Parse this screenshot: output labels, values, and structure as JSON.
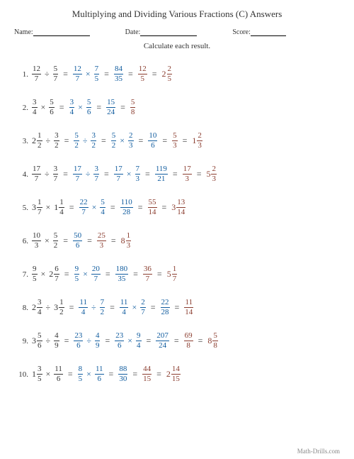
{
  "title": "Multiplying and Dividing Various Fractions (C) Answers",
  "meta": {
    "name_label": "Name:",
    "date_label": "Date:",
    "score_label": "Score:"
  },
  "instruction": "Calculate each result.",
  "footer": "Math-Drills.com",
  "colors": {
    "black": "#343434",
    "blue": "#0f5b9e",
    "brown": "#8a3c2e"
  },
  "problems": [
    {
      "n": "1.",
      "stages": [
        {
          "color": "black",
          "parts": [
            {
              "t": "f",
              "n": "12",
              "d": "7"
            },
            {
              "t": "op",
              "v": "÷"
            },
            {
              "t": "f",
              "n": "5",
              "d": "7"
            }
          ]
        },
        {
          "color": "blue",
          "parts": [
            {
              "t": "f",
              "n": "12",
              "d": "7"
            },
            {
              "t": "op",
              "v": "×"
            },
            {
              "t": "f",
              "n": "7",
              "d": "5"
            }
          ]
        },
        {
          "color": "blue",
          "parts": [
            {
              "t": "f",
              "n": "84",
              "d": "35"
            }
          ]
        },
        {
          "color": "brown",
          "parts": [
            {
              "t": "f",
              "n": "12",
              "d": "5"
            }
          ]
        },
        {
          "color": "brown",
          "parts": [
            {
              "t": "m",
              "w": "2",
              "n": "2",
              "d": "5"
            }
          ]
        }
      ]
    },
    {
      "n": "2.",
      "stages": [
        {
          "color": "black",
          "parts": [
            {
              "t": "f",
              "n": "3",
              "d": "4"
            },
            {
              "t": "op",
              "v": "×"
            },
            {
              "t": "f",
              "n": "5",
              "d": "6"
            }
          ]
        },
        {
          "color": "blue",
          "parts": [
            {
              "t": "f",
              "n": "3",
              "d": "4"
            },
            {
              "t": "op",
              "v": "×"
            },
            {
              "t": "f",
              "n": "5",
              "d": "6"
            }
          ]
        },
        {
          "color": "blue",
          "parts": [
            {
              "t": "f",
              "n": "15",
              "d": "24"
            }
          ]
        },
        {
          "color": "brown",
          "parts": [
            {
              "t": "f",
              "n": "5",
              "d": "8"
            }
          ]
        }
      ]
    },
    {
      "n": "3.",
      "stages": [
        {
          "color": "black",
          "parts": [
            {
              "t": "m",
              "w": "2",
              "n": "1",
              "d": "2"
            },
            {
              "t": "op",
              "v": "÷"
            },
            {
              "t": "f",
              "n": "3",
              "d": "2"
            }
          ]
        },
        {
          "color": "blue",
          "parts": [
            {
              "t": "f",
              "n": "5",
              "d": "2"
            },
            {
              "t": "op",
              "v": "÷"
            },
            {
              "t": "f",
              "n": "3",
              "d": "2"
            }
          ]
        },
        {
          "color": "blue",
          "parts": [
            {
              "t": "f",
              "n": "5",
              "d": "2"
            },
            {
              "t": "op",
              "v": "×"
            },
            {
              "t": "f",
              "n": "2",
              "d": "3"
            }
          ]
        },
        {
          "color": "blue",
          "parts": [
            {
              "t": "f",
              "n": "10",
              "d": "6"
            }
          ]
        },
        {
          "color": "brown",
          "parts": [
            {
              "t": "f",
              "n": "5",
              "d": "3"
            }
          ]
        },
        {
          "color": "brown",
          "parts": [
            {
              "t": "m",
              "w": "1",
              "n": "2",
              "d": "3"
            }
          ]
        }
      ]
    },
    {
      "n": "4.",
      "stages": [
        {
          "color": "black",
          "parts": [
            {
              "t": "f",
              "n": "17",
              "d": "7"
            },
            {
              "t": "op",
              "v": "÷"
            },
            {
              "t": "f",
              "n": "3",
              "d": "7"
            }
          ]
        },
        {
          "color": "blue",
          "parts": [
            {
              "t": "f",
              "n": "17",
              "d": "7"
            },
            {
              "t": "op",
              "v": "÷"
            },
            {
              "t": "f",
              "n": "3",
              "d": "7"
            }
          ]
        },
        {
          "color": "blue",
          "parts": [
            {
              "t": "f",
              "n": "17",
              "d": "7"
            },
            {
              "t": "op",
              "v": "×"
            },
            {
              "t": "f",
              "n": "7",
              "d": "3"
            }
          ]
        },
        {
          "color": "blue",
          "parts": [
            {
              "t": "f",
              "n": "119",
              "d": "21"
            }
          ]
        },
        {
          "color": "brown",
          "parts": [
            {
              "t": "f",
              "n": "17",
              "d": "3"
            }
          ]
        },
        {
          "color": "brown",
          "parts": [
            {
              "t": "m",
              "w": "5",
              "n": "2",
              "d": "3"
            }
          ]
        }
      ]
    },
    {
      "n": "5.",
      "stages": [
        {
          "color": "black",
          "parts": [
            {
              "t": "m",
              "w": "3",
              "n": "1",
              "d": "7"
            },
            {
              "t": "op",
              "v": "×"
            },
            {
              "t": "m",
              "w": "1",
              "n": "1",
              "d": "4"
            }
          ]
        },
        {
          "color": "blue",
          "parts": [
            {
              "t": "f",
              "n": "22",
              "d": "7"
            },
            {
              "t": "op",
              "v": "×"
            },
            {
              "t": "f",
              "n": "5",
              "d": "4"
            }
          ]
        },
        {
          "color": "blue",
          "parts": [
            {
              "t": "f",
              "n": "110",
              "d": "28"
            }
          ]
        },
        {
          "color": "brown",
          "parts": [
            {
              "t": "f",
              "n": "55",
              "d": "14"
            }
          ]
        },
        {
          "color": "brown",
          "parts": [
            {
              "t": "m",
              "w": "3",
              "n": "13",
              "d": "14"
            }
          ]
        }
      ]
    },
    {
      "n": "6.",
      "stages": [
        {
          "color": "black",
          "parts": [
            {
              "t": "f",
              "n": "10",
              "d": "3"
            },
            {
              "t": "op",
              "v": "×"
            },
            {
              "t": "f",
              "n": "5",
              "d": "2"
            }
          ]
        },
        {
          "color": "blue",
          "parts": [
            {
              "t": "f",
              "n": "50",
              "d": "6"
            }
          ]
        },
        {
          "color": "brown",
          "parts": [
            {
              "t": "f",
              "n": "25",
              "d": "3"
            }
          ]
        },
        {
          "color": "brown",
          "parts": [
            {
              "t": "m",
              "w": "8",
              "n": "1",
              "d": "3"
            }
          ]
        }
      ]
    },
    {
      "n": "7.",
      "stages": [
        {
          "color": "black",
          "parts": [
            {
              "t": "f",
              "n": "9",
              "d": "5"
            },
            {
              "t": "op",
              "v": "×"
            },
            {
              "t": "m",
              "w": "2",
              "n": "6",
              "d": "7"
            }
          ]
        },
        {
          "color": "blue",
          "parts": [
            {
              "t": "f",
              "n": "9",
              "d": "5"
            },
            {
              "t": "op",
              "v": "×"
            },
            {
              "t": "f",
              "n": "20",
              "d": "7"
            }
          ]
        },
        {
          "color": "blue",
          "parts": [
            {
              "t": "f",
              "n": "180",
              "d": "35"
            }
          ]
        },
        {
          "color": "brown",
          "parts": [
            {
              "t": "f",
              "n": "36",
              "d": "7"
            }
          ]
        },
        {
          "color": "brown",
          "parts": [
            {
              "t": "m",
              "w": "5",
              "n": "1",
              "d": "7"
            }
          ]
        }
      ]
    },
    {
      "n": "8.",
      "stages": [
        {
          "color": "black",
          "parts": [
            {
              "t": "m",
              "w": "2",
              "n": "3",
              "d": "4"
            },
            {
              "t": "op",
              "v": "÷"
            },
            {
              "t": "m",
              "w": "3",
              "n": "1",
              "d": "2"
            }
          ]
        },
        {
          "color": "blue",
          "parts": [
            {
              "t": "f",
              "n": "11",
              "d": "4"
            },
            {
              "t": "op",
              "v": "÷"
            },
            {
              "t": "f",
              "n": "7",
              "d": "2"
            }
          ]
        },
        {
          "color": "blue",
          "parts": [
            {
              "t": "f",
              "n": "11",
              "d": "4"
            },
            {
              "t": "op",
              "v": "×"
            },
            {
              "t": "f",
              "n": "2",
              "d": "7"
            }
          ]
        },
        {
          "color": "blue",
          "parts": [
            {
              "t": "f",
              "n": "22",
              "d": "28"
            }
          ]
        },
        {
          "color": "brown",
          "parts": [
            {
              "t": "f",
              "n": "11",
              "d": "14"
            }
          ]
        }
      ]
    },
    {
      "n": "9.",
      "stages": [
        {
          "color": "black",
          "parts": [
            {
              "t": "m",
              "w": "3",
              "n": "5",
              "d": "6"
            },
            {
              "t": "op",
              "v": "÷"
            },
            {
              "t": "f",
              "n": "4",
              "d": "9"
            }
          ]
        },
        {
          "color": "blue",
          "parts": [
            {
              "t": "f",
              "n": "23",
              "d": "6"
            },
            {
              "t": "op",
              "v": "÷"
            },
            {
              "t": "f",
              "n": "4",
              "d": "9"
            }
          ]
        },
        {
          "color": "blue",
          "parts": [
            {
              "t": "f",
              "n": "23",
              "d": "6"
            },
            {
              "t": "op",
              "v": "×"
            },
            {
              "t": "f",
              "n": "9",
              "d": "4"
            }
          ]
        },
        {
          "color": "blue",
          "parts": [
            {
              "t": "f",
              "n": "207",
              "d": "24"
            }
          ]
        },
        {
          "color": "brown",
          "parts": [
            {
              "t": "f",
              "n": "69",
              "d": "8"
            }
          ]
        },
        {
          "color": "brown",
          "parts": [
            {
              "t": "m",
              "w": "8",
              "n": "5",
              "d": "8"
            }
          ]
        }
      ]
    },
    {
      "n": "10.",
      "stages": [
        {
          "color": "black",
          "parts": [
            {
              "t": "m",
              "w": "1",
              "n": "3",
              "d": "5"
            },
            {
              "t": "op",
              "v": "×"
            },
            {
              "t": "f",
              "n": "11",
              "d": "6"
            }
          ]
        },
        {
          "color": "blue",
          "parts": [
            {
              "t": "f",
              "n": "8",
              "d": "5"
            },
            {
              "t": "op",
              "v": "×"
            },
            {
              "t": "f",
              "n": "11",
              "d": "6"
            }
          ]
        },
        {
          "color": "blue",
          "parts": [
            {
              "t": "f",
              "n": "88",
              "d": "30"
            }
          ]
        },
        {
          "color": "brown",
          "parts": [
            {
              "t": "f",
              "n": "44",
              "d": "15"
            }
          ]
        },
        {
          "color": "brown",
          "parts": [
            {
              "t": "m",
              "w": "2",
              "n": "14",
              "d": "15"
            }
          ]
        }
      ]
    }
  ]
}
